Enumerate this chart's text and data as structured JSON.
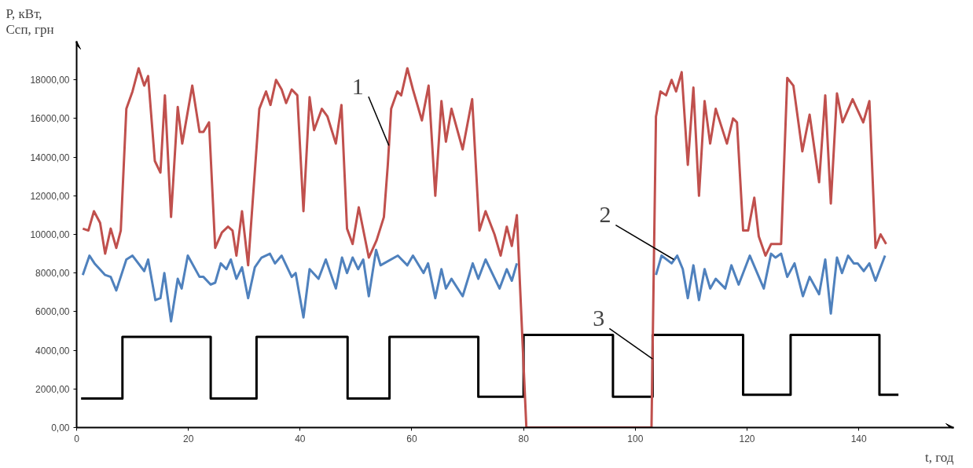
{
  "chart_data": {
    "type": "line",
    "xlabel": "t, год",
    "ylabel": "P, кВт, Cсп, грн",
    "xlim": [
      0,
      157
    ],
    "ylim": [
      0,
      20000
    ],
    "xticks": [
      0,
      20,
      40,
      60,
      80,
      100,
      120,
      140
    ],
    "yticks": [
      {
        "value": 0,
        "label": "0,00"
      },
      {
        "value": 2000,
        "label": "2000,00"
      },
      {
        "value": 4000,
        "label": "4000,00"
      },
      {
        "value": 6000,
        "label": "6000,00"
      },
      {
        "value": 8000,
        "label": "8000,00"
      },
      {
        "value": 10000,
        "label": "10000,00"
      },
      {
        "value": 12000,
        "label": "12000,00"
      },
      {
        "value": 14000,
        "label": "14000,00"
      },
      {
        "value": 16000,
        "label": "16000,00"
      },
      {
        "value": 18000,
        "label": "18000,00"
      }
    ],
    "grid": false,
    "marker": "none",
    "line_style": "solid",
    "annotations": [
      {
        "text": "1",
        "x": 55.9,
        "y": 14600
      },
      {
        "text": "2",
        "x": 106.9,
        "y": 8700
      },
      {
        "text": "3",
        "x": 103.1,
        "y": 3550
      }
    ],
    "series": [
      {
        "type": "step",
        "color": "#000000",
        "x": [
          0.8,
          8.2,
          24.0,
          32.2,
          48.5,
          56.0,
          71.9,
          80.0,
          96.0,
          103.1,
          119.3,
          127.8,
          143.7,
          147.1
        ],
        "values": [
          1500,
          4700,
          1500,
          4700,
          1500,
          4700,
          1600,
          4800,
          1600,
          4800,
          1700,
          4800,
          1700,
          1700
        ]
      },
      {
        "color": "#4f81bd",
        "x": [
          1.1,
          2.3,
          3.2,
          5.1,
          6.1,
          7.1,
          8.9,
          10.0,
          12.1,
          12.8,
          14.1,
          15.0,
          15.7,
          16.9,
          18.1,
          18.8,
          19.9,
          22.0,
          22.7,
          24.0,
          24.8,
          25.8,
          26.8,
          27.6,
          28.6,
          29.6,
          30.7,
          31.9,
          33.1,
          34.6,
          35.5,
          36.7,
          38.5,
          39.2,
          40.6,
          41.7,
          43.3,
          44.6,
          46.4,
          47.5,
          48.4,
          49.4,
          50.4,
          51.3,
          52.3,
          53.6,
          54.4,
          57.5,
          59.2,
          60.2,
          62.1,
          62.9,
          64.2,
          65.3,
          66.1,
          67.1,
          69.1,
          70.9,
          71.9,
          73.2,
          75.7,
          77.0,
          77.9,
          78.8,
          90.0,
          103.7,
          104.7,
          106.5,
          107.5,
          108.5,
          109.4,
          110.4,
          111.4,
          112.4,
          113.4,
          114.4,
          116.1,
          117.2,
          118.5,
          120.5,
          123.0,
          124.3,
          125.1,
          126.1,
          127.2,
          128.5,
          130.0,
          131.2,
          132.9,
          134.0,
          135.0,
          136.1,
          137.0,
          138.1,
          139.1,
          139.8,
          140.9,
          141.9,
          143.0,
          144.7
        ],
        "values": [
          7900,
          8900,
          8500,
          7900,
          7800,
          7100,
          8700,
          8900,
          8100,
          8700,
          6600,
          6700,
          8000,
          5500,
          7700,
          7200,
          8900,
          7800,
          7800,
          7400,
          7500,
          8500,
          8200,
          8700,
          7700,
          8300,
          6700,
          8300,
          8800,
          9000,
          8500,
          8900,
          7800,
          8000,
          5700,
          8200,
          7700,
          8700,
          7200,
          8800,
          8000,
          8800,
          8200,
          8700,
          6800,
          9200,
          8400,
          8900,
          8400,
          8900,
          8000,
          8500,
          6700,
          8200,
          7200,
          7700,
          6800,
          8500,
          7700,
          8700,
          7200,
          8200,
          7600,
          8500,
          null,
          7900,
          8900,
          8500,
          8900,
          8200,
          6700,
          8400,
          6600,
          8200,
          7200,
          7700,
          7200,
          8400,
          7400,
          8900,
          7200,
          9000,
          8800,
          9000,
          7800,
          8500,
          6800,
          7800,
          6900,
          8700,
          5900,
          8800,
          8000,
          8900,
          8500,
          8500,
          8100,
          8500,
          7600,
          8900
        ]
      },
      {
        "color": "#c0504d",
        "x": [
          1.1,
          2.1,
          3.1,
          4.2,
          5.1,
          6.1,
          7.1,
          7.9,
          8.9,
          10.0,
          11.1,
          12.1,
          12.8,
          14.0,
          15.0,
          15.8,
          16.9,
          18.1,
          18.9,
          20.7,
          22.0,
          22.7,
          23.7,
          24.8,
          26.0,
          27.1,
          27.9,
          28.6,
          29.6,
          30.7,
          32.7,
          33.9,
          34.7,
          35.7,
          36.7,
          37.5,
          38.5,
          39.5,
          40.6,
          41.7,
          42.5,
          43.9,
          44.9,
          46.4,
          47.4,
          48.4,
          49.4,
          50.5,
          52.3,
          53.7,
          55.0,
          55.7,
          56.3,
          57.4,
          58.1,
          59.2,
          60.2,
          61.8,
          63.0,
          64.2,
          65.3,
          66.1,
          67.1,
          69.1,
          70.8,
          72.1,
          73.2,
          74.8,
          75.9,
          77.0,
          77.9,
          78.8,
          80.5,
          102.9,
          103.7,
          104.5,
          105.5,
          106.5,
          107.3,
          108.3,
          109.4,
          110.4,
          111.4,
          112.4,
          113.4,
          114.4,
          116.4,
          117.5,
          118.2,
          119.3,
          120.2,
          121.3,
          122.1,
          123.3,
          124.3,
          126.1,
          127.2,
          128.3,
          129.9,
          131.2,
          132.9,
          134.0,
          135.0,
          136.1,
          137.1,
          138.9,
          140.8,
          141.9,
          143.0,
          143.9,
          144.9
        ],
        "values": [
          10300,
          10200,
          11200,
          10600,
          9000,
          10300,
          9300,
          10200,
          16500,
          17400,
          18600,
          17700,
          18200,
          13800,
          13200,
          17200,
          10900,
          16600,
          14700,
          17700,
          15300,
          15300,
          15800,
          9300,
          10100,
          10400,
          10200,
          8900,
          11200,
          8400,
          16500,
          17400,
          16700,
          18000,
          17500,
          16800,
          17500,
          17200,
          11200,
          17100,
          15400,
          16500,
          16100,
          14700,
          16700,
          10300,
          9500,
          11400,
          8800,
          9700,
          10900,
          13600,
          16500,
          17400,
          17200,
          18600,
          17500,
          15900,
          17700,
          12000,
          16900,
          14800,
          16500,
          14400,
          17000,
          10200,
          11200,
          10000,
          8900,
          10400,
          9400,
          11000,
          0,
          0,
          16100,
          17400,
          17200,
          18000,
          17400,
          18400,
          13600,
          17600,
          12000,
          16900,
          14700,
          16500,
          14700,
          16000,
          15800,
          10200,
          10200,
          11900,
          9900,
          8900,
          9500,
          9500,
          18100,
          17700,
          14300,
          16200,
          12700,
          17200,
          11600,
          17300,
          15800,
          17000,
          15800,
          16900,
          9300,
          10000,
          9500
        ]
      }
    ]
  }
}
